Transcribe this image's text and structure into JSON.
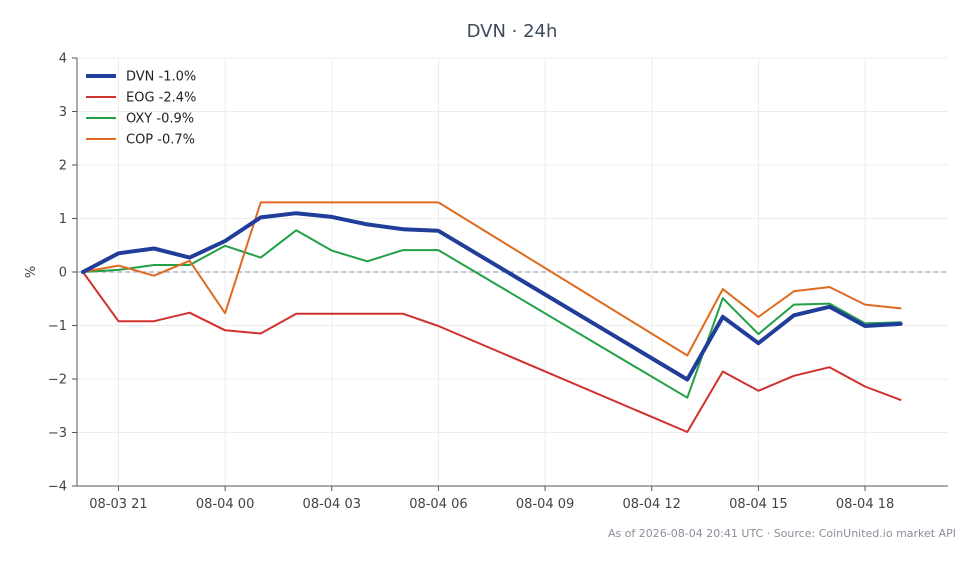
{
  "chart_data": {
    "type": "line",
    "title": "DVN · 24h",
    "ylabel": "%",
    "xlabel": "",
    "ylim": [
      -4,
      4
    ],
    "yticks": [
      -4,
      -3,
      -2,
      -1,
      0,
      1,
      2,
      3,
      4
    ],
    "xlim": [
      "08-03 19:50",
      "08-04 20:20"
    ],
    "xticks": [
      {
        "t": "08-03 21:00",
        "label": "08-03 21"
      },
      {
        "t": "08-04 00:00",
        "label": "08-04 00"
      },
      {
        "t": "08-04 03:00",
        "label": "08-04 03"
      },
      {
        "t": "08-04 06:00",
        "label": "08-04 06"
      },
      {
        "t": "08-04 09:00",
        "label": "08-04 09"
      },
      {
        "t": "08-04 12:00",
        "label": "08-04 12"
      },
      {
        "t": "08-04 15:00",
        "label": "08-04 15"
      },
      {
        "t": "08-04 18:00",
        "label": "08-04 18"
      }
    ],
    "x": [
      "08-03 20:00",
      "08-03 21:00",
      "08-03 22:00",
      "08-03 23:00",
      "08-04 00:00",
      "08-04 01:00",
      "08-04 02:00",
      "08-04 03:00",
      "08-04 04:00",
      "08-04 05:00",
      "08-04 06:00",
      "08-04 13:00",
      "08-04 14:00",
      "08-04 15:00",
      "08-04 16:00",
      "08-04 17:00",
      "08-04 18:00",
      "08-04 19:00"
    ],
    "series": [
      {
        "name": "DVN -1.0%",
        "color": "#1f3d99",
        "width": 4,
        "values": [
          0,
          0.35,
          0.44,
          0.27,
          0.58,
          1.02,
          1.1,
          1.03,
          0.89,
          0.8,
          0.77,
          -2.01,
          -0.84,
          -1.33,
          -0.81,
          -0.65,
          -1.01,
          -0.97
        ]
      },
      {
        "name": "EOG -2.4%",
        "color": "#d0312d",
        "width": 2,
        "values": [
          0,
          -0.92,
          -0.92,
          -0.76,
          -1.09,
          -1.15,
          -0.78,
          -0.78,
          -0.78,
          -0.78,
          -1.01,
          -2.99,
          -1.86,
          -2.22,
          -1.94,
          -1.78,
          -2.14,
          -2.39
        ]
      },
      {
        "name": "OXY -0.9%",
        "color": "#22a045",
        "width": 2,
        "values": [
          0,
          0.04,
          0.13,
          0.13,
          0.49,
          0.27,
          0.78,
          0.4,
          0.2,
          0.41,
          0.41,
          -2.35,
          -0.49,
          -1.16,
          -0.61,
          -0.59,
          -0.96,
          -0.94
        ]
      },
      {
        "name": "COP -0.7%",
        "color": "#e06a1f",
        "width": 2,
        "values": [
          0,
          0.12,
          -0.07,
          0.21,
          -0.77,
          1.3,
          1.3,
          1.3,
          1.3,
          1.3,
          1.3,
          -1.56,
          -0.32,
          -0.84,
          -0.36,
          -0.28,
          -0.61,
          -0.68
        ]
      }
    ],
    "reference_line": {
      "y": 0,
      "style": "dashed",
      "color": "#8a96b0"
    },
    "grid": true,
    "legend": "top-left",
    "footer": "As of 2026-08-04 20:41 UTC · Source: CoinUnited.io market API"
  }
}
